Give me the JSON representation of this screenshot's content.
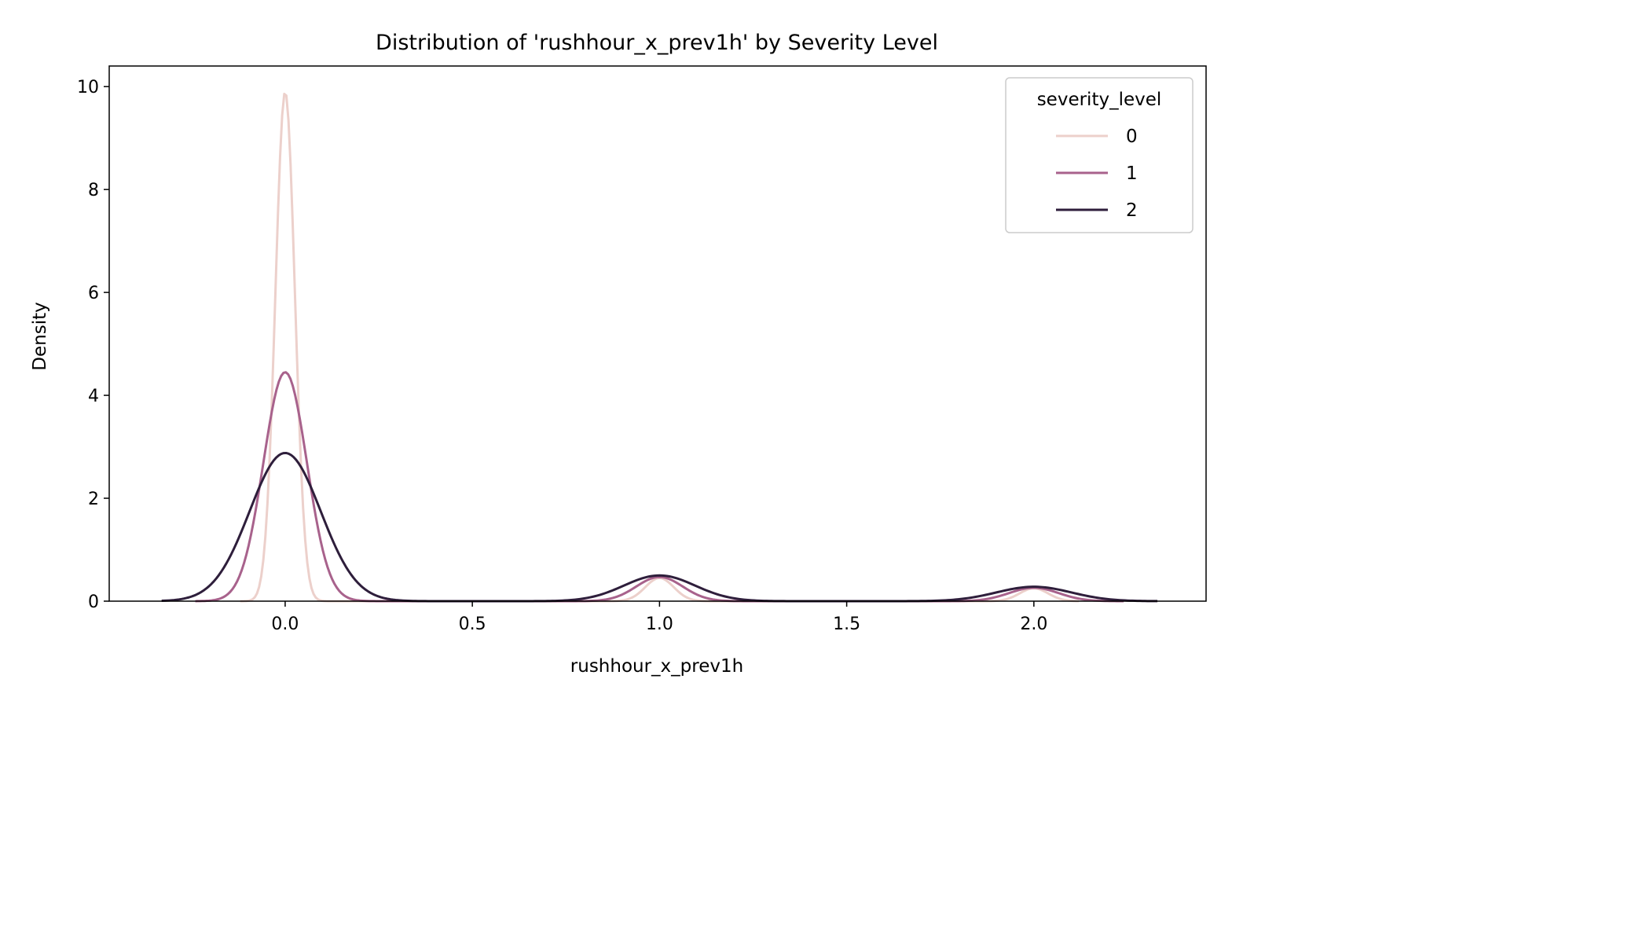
{
  "chart_data": {
    "type": "line",
    "title": "Distribution of 'rushhour_x_prev1h' by Severity Level",
    "xlabel": "rushhour_x_prev1h",
    "ylabel": "Density",
    "xlim": [
      -0.47,
      2.46
    ],
    "ylim": [
      0,
      10.4
    ],
    "xticks": [
      0.0,
      0.5,
      1.0,
      1.5,
      2.0
    ],
    "xtick_labels": [
      "0.0",
      "0.5",
      "1.0",
      "1.5",
      "2.0"
    ],
    "yticks": [
      0,
      2,
      4,
      6,
      8,
      10
    ],
    "ytick_labels": [
      "0",
      "2",
      "4",
      "6",
      "8",
      "10"
    ],
    "grid": false,
    "legend": {
      "title": "severity_level",
      "position": "top-right"
    },
    "series": [
      {
        "name": "0",
        "color": "#ecd0cb",
        "x_range": [
          -0.12,
          2.12
        ],
        "components": [
          {
            "mu": 0.0,
            "peak": 9.9,
            "sigma": 0.026
          },
          {
            "mu": 1.0,
            "peak": 0.45,
            "sigma": 0.038
          },
          {
            "mu": 2.0,
            "peak": 0.25,
            "sigma": 0.038
          }
        ]
      },
      {
        "name": "1",
        "color": "#a8628c",
        "x_range": [
          -0.24,
          2.24
        ],
        "components": [
          {
            "mu": 0.0,
            "peak": 4.45,
            "sigma": 0.058
          },
          {
            "mu": 1.0,
            "peak": 0.47,
            "sigma": 0.062
          },
          {
            "mu": 2.0,
            "peak": 0.26,
            "sigma": 0.066
          }
        ]
      },
      {
        "name": "2",
        "color": "#2e1e3b",
        "x_range": [
          -0.33,
          2.33
        ],
        "components": [
          {
            "mu": 0.0,
            "peak": 2.88,
            "sigma": 0.095
          },
          {
            "mu": 1.0,
            "peak": 0.5,
            "sigma": 0.095
          },
          {
            "mu": 2.0,
            "peak": 0.28,
            "sigma": 0.1
          }
        ]
      }
    ]
  }
}
